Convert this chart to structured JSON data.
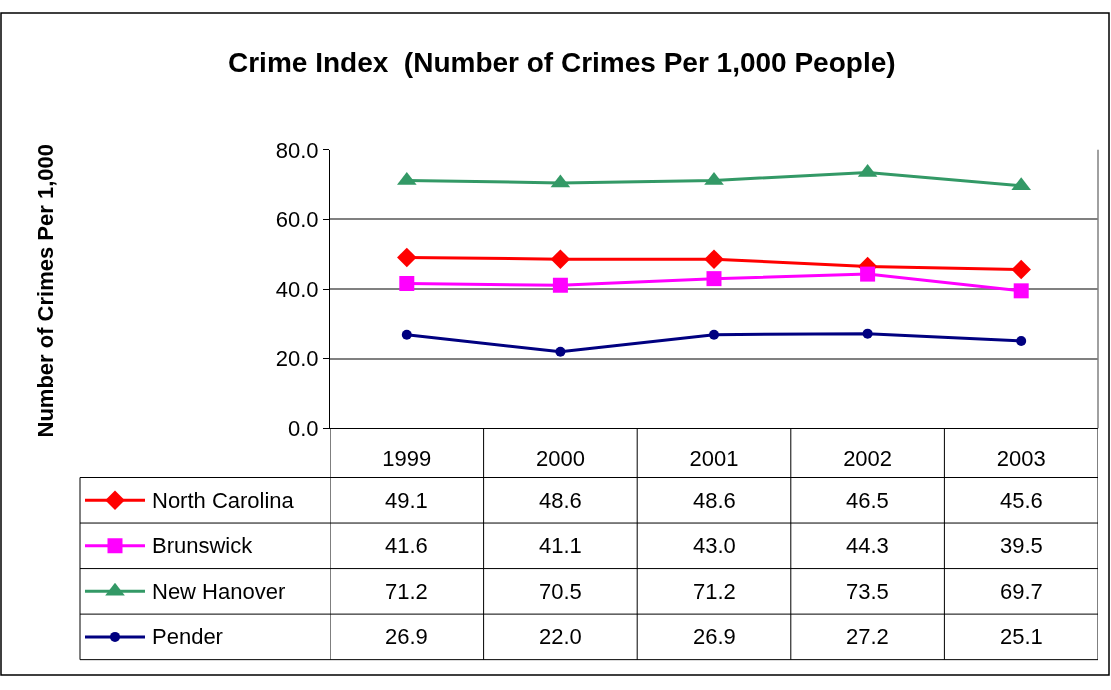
{
  "chart_data": {
    "type": "line",
    "title": "Crime Index  (Number of Crimes Per 1,000 People)",
    "annotations": [
      "Number of Crimes Per 1,000"
    ],
    "categories": [
      "1999",
      "2000",
      "2001",
      "2002",
      "2003"
    ],
    "series": [
      {
        "name": "North Carolina",
        "color": "#ff0000",
        "marker": "diamond",
        "values": [
          49.1,
          48.6,
          48.6,
          46.5,
          45.6
        ],
        "value_labels": [
          "49.1",
          "48.6",
          "48.6",
          "46.5",
          "45.6"
        ]
      },
      {
        "name": "Brunswick",
        "color": "#ff00ff",
        "marker": "square",
        "values": [
          41.6,
          41.1,
          43.0,
          44.3,
          39.5
        ],
        "value_labels": [
          "41.6",
          "41.1",
          "43.0",
          "44.3",
          "39.5"
        ]
      },
      {
        "name": "New Hanover",
        "color": "#339966",
        "marker": "triangle",
        "values": [
          71.2,
          70.5,
          71.2,
          73.5,
          69.7
        ],
        "value_labels": [
          "71.2",
          "70.5",
          "71.2",
          "73.5",
          "69.7"
        ]
      },
      {
        "name": "Pender",
        "color": "#000080",
        "marker": "circle",
        "values": [
          26.9,
          22.0,
          26.9,
          27.2,
          25.1
        ],
        "value_labels": [
          "26.9",
          "22.0",
          "26.9",
          "27.2",
          "25.1"
        ]
      }
    ],
    "ylim": [
      0,
      80
    ],
    "yticks": [
      {
        "value": 0,
        "label": "0.0"
      },
      {
        "value": 20,
        "label": "20.0"
      },
      {
        "value": 40,
        "label": "40.0"
      },
      {
        "value": 60,
        "label": "60.0"
      },
      {
        "value": 80,
        "label": "80.0"
      }
    ],
    "grid": "y",
    "legend": "bottom",
    "line_style": "solid"
  }
}
